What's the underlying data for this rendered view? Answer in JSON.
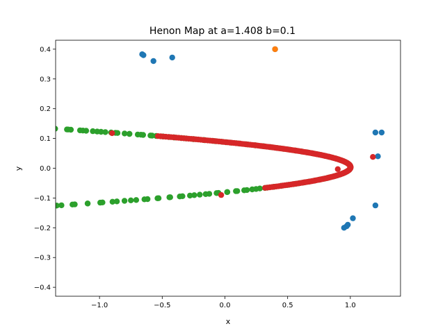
{
  "chart_data": {
    "type": "scatter",
    "title": "Henon Map at a=1.408 b=0.1",
    "xlabel": "x",
    "ylabel": "y",
    "xlim": [
      -1.35,
      1.4
    ],
    "ylim": [
      -0.43,
      0.43
    ],
    "xticks": [
      -1.0,
      -0.5,
      0.0,
      0.5,
      1.0
    ],
    "xtick_labels": [
      "−1.0",
      "−0.5",
      "0.0",
      "0.5",
      "1.0"
    ],
    "yticks": [
      -0.4,
      -0.3,
      -0.2,
      -0.1,
      0.0,
      0.1,
      0.2,
      0.3,
      0.4
    ],
    "ytick_labels": [
      "−0.4",
      "−0.3",
      "−0.2",
      "−0.1",
      "0.0",
      "0.1",
      "0.2",
      "0.3",
      "0.4"
    ],
    "grid": false,
    "legend": false,
    "series": [
      {
        "color": "#1f77b4",
        "points": [
          [
            -0.66,
            0.383
          ],
          [
            -0.65,
            0.38
          ],
          [
            -0.57,
            0.36
          ],
          [
            -0.42,
            0.372
          ],
          [
            0.4,
            0.4
          ],
          [
            1.2,
            0.12
          ],
          [
            1.25,
            0.12
          ],
          [
            1.22,
            0.04
          ],
          [
            1.2,
            -0.125
          ],
          [
            0.95,
            -0.2
          ],
          [
            0.97,
            -0.195
          ],
          [
            1.02,
            -0.168
          ],
          [
            0.98,
            -0.19
          ]
        ]
      },
      {
        "color": "#ff7f0e",
        "curves": [
          {
            "y0": 0.392,
            "y1": 0.305,
            "a": 1.408,
            "b": 0.1,
            "n": 170
          },
          {
            "y0": -0.18,
            "y1": -0.31,
            "a": 1.408,
            "b": 0.1,
            "n": 80
          }
        ],
        "points": [
          [
            0.4,
            0.4
          ]
        ]
      },
      {
        "color": "#2ca02c",
        "curves": [
          {
            "y0": 0.382,
            "y1": -0.385,
            "a": 1.408,
            "b": 0.1,
            "n": 260
          },
          {
            "y0": 0.29,
            "y1": -0.3,
            "a": 1.408,
            "b": 0.1,
            "n": 170
          },
          {
            "y0": 0.23,
            "y1": 0.1,
            "a": 1.408,
            "b": 0.1,
            "n": 40
          },
          {
            "y0": 0.26,
            "y1": 0.21,
            "a": 1.408,
            "b": 0.1,
            "n": 25
          }
        ],
        "points": []
      },
      {
        "color": "#d62728",
        "curves": [
          {
            "y0": 0.108,
            "y1": 0.0,
            "a": 1.408,
            "b": 0.1,
            "n": 150
          },
          {
            "y0": 0.0,
            "y1": -0.066,
            "a": 1.408,
            "b": 0.1,
            "n": 70
          }
        ],
        "points": [
          [
            -0.9,
            0.118
          ],
          [
            -0.03,
            -0.09
          ],
          [
            0.9,
            -0.003
          ],
          [
            1.18,
            0.038
          ]
        ]
      }
    ]
  }
}
